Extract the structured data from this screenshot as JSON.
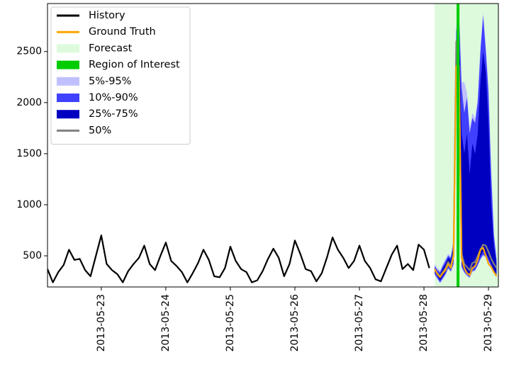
{
  "chart_data": {
    "type": "forecast",
    "xlim": [
      "2013-05-22T04:00",
      "2013-05-29T03:40"
    ],
    "ylim": [
      195,
      2970
    ],
    "yticks": [
      500,
      1000,
      1500,
      2000,
      2500
    ],
    "xticks": [
      "2013-05-23",
      "2013-05-24",
      "2013-05-25",
      "2013-05-26",
      "2013-05-27",
      "2013-05-28",
      "2013-05-29"
    ],
    "legend": "upper left",
    "series": [
      {
        "name": "History",
        "kind": "line",
        "color": "#000000",
        "x": [
          "2013-05-22T04:00",
          "2013-05-22T06:00",
          "2013-05-22T08:00",
          "2013-05-22T10:00",
          "2013-05-22T12:00",
          "2013-05-22T14:00",
          "2013-05-22T16:00",
          "2013-05-22T18:00",
          "2013-05-22T20:00",
          "2013-05-22T22:00",
          "2013-05-23T00:00",
          "2013-05-23T02:00",
          "2013-05-23T04:00",
          "2013-05-23T06:00",
          "2013-05-23T08:00",
          "2013-05-23T10:00",
          "2013-05-23T12:00",
          "2013-05-23T14:00",
          "2013-05-23T16:00",
          "2013-05-23T18:00",
          "2013-05-23T20:00",
          "2013-05-23T22:00",
          "2013-05-24T00:00",
          "2013-05-24T02:00",
          "2013-05-24T04:00",
          "2013-05-24T06:00",
          "2013-05-24T08:00",
          "2013-05-24T10:00",
          "2013-05-24T12:00",
          "2013-05-24T14:00",
          "2013-05-24T16:00",
          "2013-05-24T18:00",
          "2013-05-24T20:00",
          "2013-05-24T22:00",
          "2013-05-25T00:00",
          "2013-05-25T02:00",
          "2013-05-25T04:00",
          "2013-05-25T06:00",
          "2013-05-25T08:00",
          "2013-05-25T10:00",
          "2013-05-25T12:00",
          "2013-05-25T14:00",
          "2013-05-25T16:00",
          "2013-05-25T18:00",
          "2013-05-25T20:00",
          "2013-05-25T22:00",
          "2013-05-26T00:00",
          "2013-05-26T02:00",
          "2013-05-26T04:00",
          "2013-05-26T06:00",
          "2013-05-26T08:00",
          "2013-05-26T10:00",
          "2013-05-26T12:00",
          "2013-05-26T14:00",
          "2013-05-26T16:00",
          "2013-05-26T18:00",
          "2013-05-26T20:00",
          "2013-05-26T22:00",
          "2013-05-27T00:00",
          "2013-05-27T02:00",
          "2013-05-27T04:00",
          "2013-05-27T06:00",
          "2013-05-27T08:00",
          "2013-05-27T10:00",
          "2013-05-27T12:00",
          "2013-05-27T14:00",
          "2013-05-27T16:00",
          "2013-05-27T18:00",
          "2013-05-27T20:00",
          "2013-05-27T22:00",
          "2013-05-28T00:00",
          "2013-05-28T02:00"
        ],
        "values": [
          370,
          240,
          340,
          410,
          560,
          460,
          470,
          360,
          300,
          500,
          700,
          420,
          360,
          320,
          240,
          350,
          420,
          480,
          600,
          420,
          360,
          500,
          630,
          450,
          400,
          340,
          240,
          330,
          430,
          560,
          460,
          300,
          290,
          380,
          590,
          450,
          370,
          340,
          240,
          260,
          350,
          470,
          570,
          480,
          300,
          420,
          650,
          520,
          370,
          350,
          250,
          330,
          490,
          680,
          560,
          480,
          380,
          450,
          600,
          450,
          380,
          270,
          250,
          380,
          510,
          600,
          370,
          420,
          360,
          610,
          560,
          380
        ]
      },
      {
        "name": "Ground Truth",
        "kind": "line",
        "color": "#ffa500",
        "x": [
          "2013-05-28T04:00",
          "2013-05-28T05:00",
          "2013-05-28T06:00",
          "2013-05-28T07:00",
          "2013-05-28T08:00",
          "2013-05-28T09:00",
          "2013-05-28T10:00",
          "2013-05-28T11:00",
          "2013-05-28T12:00",
          "2013-05-28T13:00",
          "2013-05-28T14:00",
          "2013-05-28T15:00",
          "2013-05-28T16:00",
          "2013-05-28T17:00",
          "2013-05-28T18:00",
          "2013-05-28T19:00",
          "2013-05-28T20:00",
          "2013-05-28T21:00",
          "2013-05-28T22:00",
          "2013-05-28T23:00",
          "2013-05-29T00:00",
          "2013-05-29T01:00",
          "2013-05-29T02:00",
          "2013-05-29T03:00"
        ],
        "values": [
          370,
          320,
          290,
          330,
          360,
          420,
          380,
          500,
          2360,
          2360,
          480,
          380,
          330,
          310,
          380,
          400,
          460,
          560,
          580,
          500,
          420,
          390,
          340,
          300
        ]
      },
      {
        "name": "Forecast",
        "kind": "span",
        "color": "#ddfadd",
        "start": "2013-05-28T04:00",
        "end": "2013-05-29T03:40"
      },
      {
        "name": "Region of Interest",
        "kind": "vline",
        "color": "#00cc00",
        "at": "2013-05-28T12:40"
      },
      {
        "name": "5%-95%",
        "kind": "band",
        "color": "#c0c0ff",
        "x": [
          "2013-05-28T04:00",
          "2013-05-28T05:00",
          "2013-05-28T06:00",
          "2013-05-28T07:00",
          "2013-05-28T08:00",
          "2013-05-28T09:00",
          "2013-05-28T10:00",
          "2013-05-28T11:00",
          "2013-05-28T12:00",
          "2013-05-28T13:00",
          "2013-05-28T14:00",
          "2013-05-28T15:00",
          "2013-05-28T16:00",
          "2013-05-28T17:00",
          "2013-05-28T18:00",
          "2013-05-28T19:00",
          "2013-05-28T20:00",
          "2013-05-28T21:00",
          "2013-05-28T22:00",
          "2013-05-28T23:00",
          "2013-05-29T00:00",
          "2013-05-29T01:00",
          "2013-05-29T02:00",
          "2013-05-29T03:00"
        ],
        "lower": [
          310,
          270,
          230,
          270,
          310,
          370,
          340,
          410,
          2050,
          1850,
          380,
          330,
          300,
          280,
          340,
          350,
          400,
          460,
          500,
          480,
          440,
          390,
          330,
          290
        ],
        "upper": [
          420,
          380,
          360,
          420,
          470,
          520,
          500,
          660,
          2750,
          2950,
          2200,
          2200,
          2100,
          1750,
          1900,
          1850,
          2050,
          2550,
          2880,
          2550,
          2150,
          1350,
          720,
          480
        ]
      },
      {
        "name": "10%-90%",
        "kind": "band",
        "color": "#4040ff",
        "x": [
          "2013-05-28T04:00",
          "2013-05-28T05:00",
          "2013-05-28T06:00",
          "2013-05-28T07:00",
          "2013-05-28T08:00",
          "2013-05-28T09:00",
          "2013-05-28T10:00",
          "2013-05-28T11:00",
          "2013-05-28T12:00",
          "2013-05-28T13:00",
          "2013-05-28T14:00",
          "2013-05-28T15:00",
          "2013-05-28T16:00",
          "2013-05-28T17:00",
          "2013-05-28T18:00",
          "2013-05-28T19:00",
          "2013-05-28T20:00",
          "2013-05-28T21:00",
          "2013-05-28T22:00",
          "2013-05-28T23:00",
          "2013-05-29T00:00",
          "2013-05-29T01:00",
          "2013-05-29T02:00",
          "2013-05-29T03:00"
        ],
        "lower": [
          320,
          280,
          240,
          280,
          320,
          380,
          350,
          420,
          2100,
          1900,
          390,
          340,
          310,
          290,
          350,
          360,
          410,
          470,
          510,
          490,
          450,
          400,
          340,
          300
        ],
        "upper": [
          400,
          360,
          340,
          400,
          450,
          500,
          480,
          640,
          2700,
          2900,
          2150,
          1900,
          2050,
          1700,
          1850,
          1800,
          2000,
          2500,
          2850,
          2500,
          2100,
          1300,
          700,
          460
        ]
      },
      {
        "name": "25%-75%",
        "kind": "band",
        "color": "#0000c0",
        "x": [
          "2013-05-28T04:00",
          "2013-05-28T05:00",
          "2013-05-28T06:00",
          "2013-05-28T07:00",
          "2013-05-28T08:00",
          "2013-05-28T09:00",
          "2013-05-28T10:00",
          "2013-05-28T11:00",
          "2013-05-28T12:00",
          "2013-05-28T13:00",
          "2013-05-28T14:00",
          "2013-05-28T15:00",
          "2013-05-28T16:00",
          "2013-05-28T17:00",
          "2013-05-28T18:00",
          "2013-05-28T19:00",
          "2013-05-28T20:00",
          "2013-05-28T21:00",
          "2013-05-28T22:00",
          "2013-05-28T23:00",
          "2013-05-29T00:00",
          "2013-05-29T01:00",
          "2013-05-29T02:00",
          "2013-05-29T03:00"
        ],
        "lower": [
          340,
          300,
          260,
          300,
          340,
          400,
          370,
          450,
          2200,
          2000,
          420,
          360,
          330,
          310,
          380,
          390,
          440,
          500,
          540,
          520,
          480,
          420,
          360,
          320
        ],
        "upper": [
          380,
          340,
          320,
          380,
          420,
          480,
          460,
          600,
          2500,
          2700,
          1700,
          1500,
          1700,
          1300,
          1600,
          1500,
          1700,
          2200,
          2500,
          2300,
          1800,
          1000,
          600,
          420
        ]
      },
      {
        "name": "50%",
        "kind": "line",
        "color": "#808080",
        "x": [
          "2013-05-28T04:00",
          "2013-05-28T05:00",
          "2013-05-28T06:00",
          "2013-05-28T07:00",
          "2013-05-28T08:00",
          "2013-05-28T09:00",
          "2013-05-28T10:00",
          "2013-05-28T11:00",
          "2013-05-28T12:00",
          "2013-05-28T13:00",
          "2013-05-28T14:00",
          "2013-05-28T15:00",
          "2013-05-28T16:00",
          "2013-05-28T17:00",
          "2013-05-28T18:00",
          "2013-05-28T19:00",
          "2013-05-28T20:00",
          "2013-05-28T21:00",
          "2013-05-28T22:00",
          "2013-05-28T23:00",
          "2013-05-29T00:00",
          "2013-05-29T01:00",
          "2013-05-29T02:00",
          "2013-05-29T03:00"
        ],
        "values": [
          360,
          330,
          300,
          340,
          380,
          440,
          400,
          520,
          2600,
          2300,
          520,
          420,
          390,
          360,
          430,
          440,
          500,
          560,
          610,
          600,
          540,
          470,
          420,
          380
        ]
      }
    ]
  }
}
